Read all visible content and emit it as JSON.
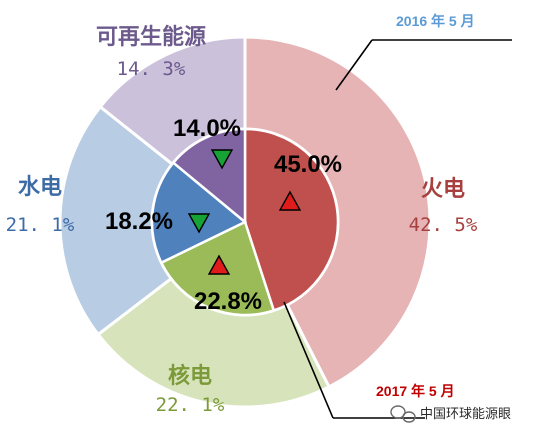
{
  "chart_data": {
    "type": "pie",
    "style": "nested-donut",
    "categories": [
      "火电",
      "核电",
      "水电",
      "可再生能源"
    ],
    "series": [
      {
        "name": "2016 年 5 月",
        "ring": "outer",
        "values": [
          42.5,
          22.1,
          21.1,
          14.3
        ],
        "labels": [
          "42.5%",
          "22.1%",
          "21.1%",
          "14.3%"
        ],
        "colors": [
          "#e6b4b5",
          "#d7e4bb",
          "#b8cce4",
          "#ccc1da"
        ]
      },
      {
        "name": "2017 年 5 月",
        "ring": "inner",
        "values": [
          45.0,
          22.8,
          18.2,
          14.0
        ],
        "labels": [
          "45.0%",
          "22.8%",
          "18.2%",
          "14.0%"
        ],
        "colors": [
          "#c0504d",
          "#9bbb59",
          "#4f81bd",
          "#8064a2"
        ],
        "trend": [
          "up",
          "up",
          "down",
          "down"
        ]
      }
    ],
    "category_label_colors": [
      "#a73f3e",
      "#7c9a3a",
      "#3d6ba6",
      "#6c5a8c"
    ],
    "series_label_colors": [
      "#5b9bd5",
      "#c00000"
    ],
    "trend_colors": {
      "up": "#e01b1b",
      "down": "#17a236"
    },
    "legend": "none",
    "grid": false
  },
  "watermark": "中国环球能源眼"
}
